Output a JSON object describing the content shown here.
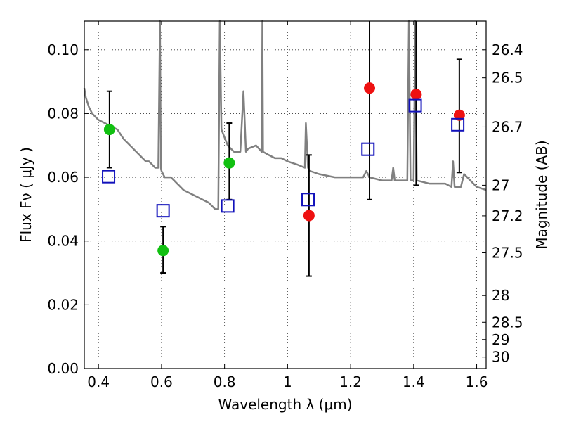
{
  "chart_data": {
    "type": "scatter",
    "xlabel": "Wavelength  λ (μm)",
    "ylabel": "Flux  Fν  ( μJy )",
    "y2label": "Magnitude (AB)",
    "xlim": [
      0.355,
      1.63
    ],
    "ylim": [
      0.0,
      0.109
    ],
    "grid": true,
    "x_ticks": [
      0.4,
      0.6,
      0.8,
      1.0,
      1.2,
      1.4,
      1.6
    ],
    "x_tick_labels": [
      "0.4",
      "0.6",
      "0.8",
      "1",
      "1.2",
      "1.4",
      "1.6"
    ],
    "y_ticks": [
      0.0,
      0.02,
      0.04,
      0.06,
      0.08,
      0.1
    ],
    "y_tick_labels": [
      "0.00",
      "0.02",
      "0.04",
      "0.06",
      "0.08",
      "0.10"
    ],
    "y2_ticks": [
      {
        "label": "26.4",
        "flux": 0.1
      },
      {
        "label": "26.5",
        "flux": 0.0912
      },
      {
        "label": "26.7",
        "flux": 0.0758
      },
      {
        "label": "27",
        "flux": 0.0575
      },
      {
        "label": "27.2",
        "flux": 0.0479
      },
      {
        "label": "27.5",
        "flux": 0.0363
      },
      {
        "label": "28",
        "flux": 0.0229
      },
      {
        "label": "28.5",
        "flux": 0.0145
      },
      {
        "label": "29",
        "flux": 0.0091
      },
      {
        "label": "30",
        "flux": 0.0036
      }
    ],
    "series": [
      {
        "kind": "line",
        "color": "#808080",
        "x": [
          0.355,
          0.36,
          0.37,
          0.38,
          0.4,
          0.42,
          0.44,
          0.46,
          0.48,
          0.5,
          0.52,
          0.54,
          0.55,
          0.56,
          0.57,
          0.58,
          0.59,
          0.595,
          0.598,
          0.6,
          0.61,
          0.63,
          0.65,
          0.67,
          0.69,
          0.71,
          0.73,
          0.75,
          0.77,
          0.78,
          0.785,
          0.79,
          0.81,
          0.83,
          0.85,
          0.86,
          0.868,
          0.875,
          0.9,
          0.918,
          0.92,
          0.922,
          0.94,
          0.96,
          0.98,
          1.0,
          1.03,
          1.055,
          1.058,
          1.065,
          1.07,
          1.1,
          1.15,
          1.2,
          1.24,
          1.25,
          1.26,
          1.3,
          1.33,
          1.335,
          1.34,
          1.37,
          1.38,
          1.385,
          1.39,
          1.4,
          1.405,
          1.41,
          1.45,
          1.5,
          1.52,
          1.525,
          1.53,
          1.55,
          1.56,
          1.6,
          1.63
        ],
        "y": [
          0.088,
          0.085,
          0.082,
          0.08,
          0.078,
          0.077,
          0.076,
          0.075,
          0.072,
          0.07,
          0.068,
          0.066,
          0.065,
          0.065,
          0.064,
          0.063,
          0.063,
          0.109,
          0.063,
          0.062,
          0.06,
          0.06,
          0.058,
          0.056,
          0.055,
          0.054,
          0.053,
          0.052,
          0.05,
          0.05,
          0.109,
          0.075,
          0.07,
          0.068,
          0.068,
          0.087,
          0.068,
          0.069,
          0.07,
          0.068,
          0.109,
          0.068,
          0.067,
          0.066,
          0.066,
          0.065,
          0.064,
          0.063,
          0.077,
          0.063,
          0.062,
          0.061,
          0.06,
          0.06,
          0.06,
          0.062,
          0.06,
          0.059,
          0.059,
          0.063,
          0.059,
          0.059,
          0.059,
          0.109,
          0.059,
          0.059,
          0.109,
          0.059,
          0.058,
          0.058,
          0.057,
          0.065,
          0.057,
          0.057,
          0.061,
          0.057,
          0.056
        ]
      },
      {
        "kind": "points",
        "marker": "circle",
        "color": "#11c011",
        "x": [
          0.435,
          0.605,
          0.815
        ],
        "y": [
          0.075,
          0.037,
          0.0645
        ],
        "err_low": [
          0.063,
          0.03,
          0.053
        ],
        "err_high": [
          0.087,
          0.0445,
          0.077
        ]
      },
      {
        "kind": "points",
        "marker": "circle",
        "color": "#ee1111",
        "x": [
          1.068,
          1.26,
          1.408,
          1.545
        ],
        "y": [
          0.048,
          0.088,
          0.086,
          0.0795
        ],
        "err_low": [
          0.029,
          0.053,
          0.0575,
          0.0615
        ],
        "err_high": [
          0.067,
          0.109,
          0.109,
          0.097
        ]
      },
      {
        "kind": "points",
        "marker": "square",
        "color": "#1111bb",
        "x": [
          0.432,
          0.605,
          0.81,
          1.065,
          1.255,
          1.405,
          1.54
        ],
        "y": [
          0.0602,
          0.0495,
          0.051,
          0.053,
          0.0688,
          0.0825,
          0.0765
        ]
      }
    ]
  }
}
